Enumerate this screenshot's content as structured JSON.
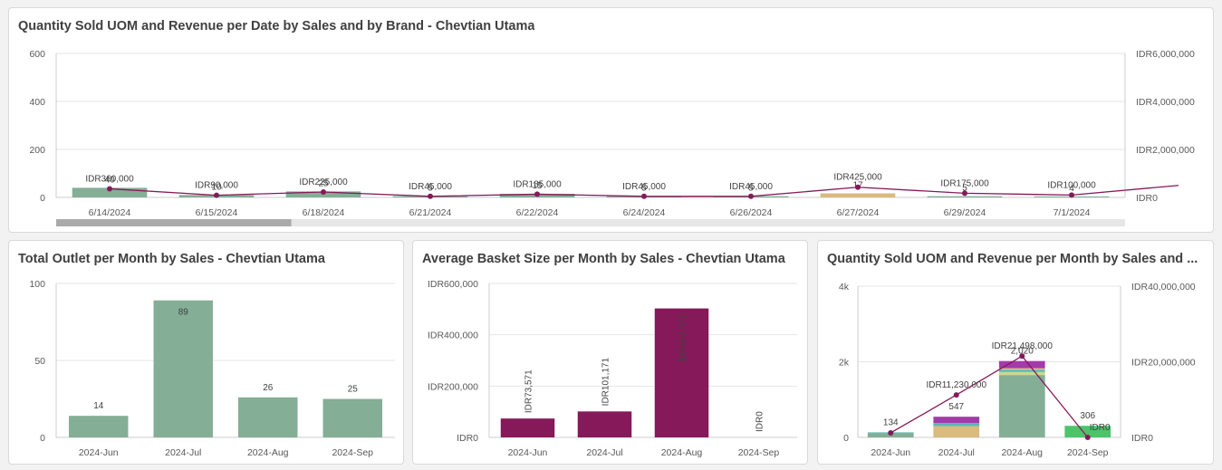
{
  "colors": {
    "green": "#84ae96",
    "purple": "#86195a",
    "tan": "#d9bb7e",
    "teal": "#5bb8b0",
    "magenta": "#a33bab",
    "lime": "#c9d98c",
    "brightgreen": "#4cc46a",
    "grid": "#e6e6e6",
    "scroll_track": "#e6e6e6",
    "scroll_thumb": "#aaaaaa"
  },
  "panels": {
    "top": {
      "title": "Quantity Sold UOM and Revenue per Date by Sales and by Brand - Chevtian Utama"
    },
    "outlet": {
      "title": "Total Outlet per Month by Sales - Chevtian Utama"
    },
    "basket": {
      "title": "Average Basket Size per Month by Sales - Chevtian Utama"
    },
    "monthly": {
      "title": "Quantity Sold UOM and Revenue per Month by Sales and ..."
    }
  },
  "chart_data": [
    {
      "id": "top",
      "type": "bar",
      "title": "Quantity Sold UOM and Revenue per Date by Sales and by Brand - Chevtian Utama",
      "categories": [
        "6/14/2024",
        "6/15/2024",
        "6/18/2024",
        "6/21/2024",
        "6/22/2024",
        "6/24/2024",
        "6/26/2024",
        "6/27/2024",
        "6/29/2024",
        "7/1/2024"
      ],
      "bar_values": [
        40,
        10,
        25,
        5,
        15,
        5,
        5,
        17,
        5,
        4
      ],
      "bar_labels": [
        "40",
        "10",
        "25",
        "5",
        "15",
        "5",
        "5",
        "17",
        "5",
        "4"
      ],
      "bar_colors": [
        "green",
        "green",
        "green",
        "green",
        "green",
        "green",
        "green",
        "tan",
        "green",
        "green"
      ],
      "line_values": [
        360000,
        90000,
        225000,
        45000,
        135000,
        45000,
        45000,
        425000,
        175000,
        100000
      ],
      "line_labels": [
        "IDR360,000",
        "IDR90,000",
        "IDR225,000",
        "IDR45,000",
        "IDR135,000",
        "IDR45,000",
        "IDR45,000",
        "IDR425,000",
        "IDR175,000",
        "IDR100,000"
      ],
      "line_next_value": 500000,
      "ylim_left": [
        0,
        600
      ],
      "yticks_left": [
        "0",
        "200",
        "400",
        "600"
      ],
      "ylim_right": [
        0,
        6000000
      ],
      "yticks_right": [
        "IDR0",
        "IDR2,000,000",
        "IDR4,000,000",
        "IDR6,000,000"
      ],
      "scrollbar_visible_fraction": 0.22
    },
    {
      "id": "outlet",
      "type": "bar",
      "title": "Total Outlet per Month by Sales - Chevtian Utama",
      "categories": [
        "2024-Jun",
        "2024-Jul",
        "2024-Aug",
        "2024-Sep"
      ],
      "values": [
        14,
        89,
        26,
        25
      ],
      "labels": [
        "14",
        "89",
        "26",
        "25"
      ],
      "ylim": [
        0,
        100
      ],
      "yticks": [
        "0",
        "50",
        "100"
      ]
    },
    {
      "id": "basket",
      "type": "bar",
      "title": "Average Basket Size per Month by Sales - Chevtian Utama",
      "categories": [
        "2024-Jun",
        "2024-Jul",
        "2024-Aug",
        "2024-Sep"
      ],
      "values": [
        73571,
        101171,
        502571,
        0
      ],
      "labels": [
        "IDR73,571",
        "IDR101,171",
        "IDR502,571",
        "IDR0"
      ],
      "ylim": [
        0,
        600000
      ],
      "yticks": [
        "IDR0",
        "IDR200,000",
        "IDR400,000",
        "IDR600,000"
      ]
    },
    {
      "id": "monthly",
      "type": "bar",
      "title": "Quantity Sold UOM and Revenue per Month by Sales and ...",
      "categories": [
        "2024-Jun",
        "2024-Jul",
        "2024-Aug",
        "2024-Sep"
      ],
      "stacks": [
        [
          {
            "color": "green",
            "value": 110
          },
          {
            "color": "teal",
            "value": 24
          }
        ],
        [
          {
            "color": "tan",
            "value": 300
          },
          {
            "color": "teal",
            "value": 80
          },
          {
            "color": "magenta",
            "value": 167
          }
        ],
        [
          {
            "color": "green",
            "value": 1650
          },
          {
            "color": "lime",
            "value": 80
          },
          {
            "color": "teal",
            "value": 60
          },
          {
            "color": "tan",
            "value": 40
          },
          {
            "color": "magenta",
            "value": 190
          }
        ],
        [
          {
            "color": "brightgreen",
            "value": 306
          }
        ]
      ],
      "totals": [
        "134",
        "547",
        "2,020",
        "306"
      ],
      "line_values": [
        1200000,
        11230000,
        21498000,
        0
      ],
      "line_labels": [
        "",
        "IDR11,230,000",
        "IDR21,498,000",
        "IDR0"
      ],
      "ylim_left": [
        0,
        4000
      ],
      "yticks_left": [
        "0",
        "2k",
        "4k"
      ],
      "ylim_right": [
        0,
        40000000
      ],
      "yticks_right": [
        "IDR0",
        "IDR20,000,000",
        "IDR40,000,000"
      ]
    }
  ]
}
